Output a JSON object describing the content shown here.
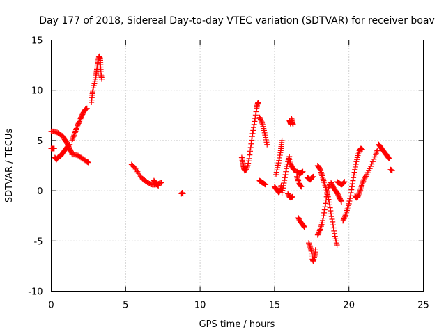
{
  "chart_data": {
    "type": "scatter",
    "title": "Day 177 of 2018, Sidereal Day-to-day VTEC variation (SDTVAR) for receiver boav",
    "xlabel": "GPS time / hours",
    "ylabel": "SDTVAR / TECUs",
    "xlim": [
      0,
      25
    ],
    "ylim": [
      -10,
      15
    ],
    "xticks": [
      "0",
      "5",
      "10",
      "15",
      "20",
      "25"
    ],
    "yticks": [
      "-10",
      "-5",
      "0",
      "5",
      "10",
      "15"
    ],
    "grid": true,
    "legend": "none",
    "marker": "+",
    "series": [
      {
        "name": "SDTVAR",
        "color": "#ff0000",
        "segments": [
          [
            [
              0.0,
              4.2
            ],
            [
              0.1,
              4.2
            ],
            [
              0.2,
              4.2
            ]
          ],
          [
            [
              0.0,
              5.9
            ],
            [
              0.2,
              5.9
            ],
            [
              0.4,
              5.8
            ],
            [
              0.6,
              5.6
            ],
            [
              0.8,
              5.4
            ],
            [
              0.9,
              5.1
            ],
            [
              1.0,
              4.9
            ],
            [
              1.1,
              4.6
            ],
            [
              1.2,
              4.3
            ],
            [
              1.3,
              4.0
            ],
            [
              1.4,
              3.7
            ]
          ],
          [
            [
              0.25,
              3.3
            ],
            [
              0.35,
              3.1
            ],
            [
              0.45,
              3.3
            ],
            [
              0.55,
              3.4
            ],
            [
              0.65,
              3.5
            ],
            [
              0.75,
              3.7
            ],
            [
              0.85,
              3.9
            ],
            [
              0.95,
              4.1
            ],
            [
              1.05,
              4.3
            ],
            [
              1.15,
              4.5
            ],
            [
              1.25,
              4.6
            ]
          ],
          [
            [
              1.4,
              5.0
            ],
            [
              1.5,
              5.4
            ],
            [
              1.6,
              5.8
            ],
            [
              1.7,
              6.2
            ],
            [
              1.8,
              6.6
            ],
            [
              1.9,
              6.9
            ],
            [
              2.0,
              7.3
            ],
            [
              2.1,
              7.6
            ],
            [
              2.2,
              7.9
            ],
            [
              2.3,
              8.1
            ],
            [
              2.4,
              8.2
            ]
          ],
          [
            [
              1.4,
              3.6
            ],
            [
              1.6,
              3.6
            ],
            [
              1.8,
              3.5
            ],
            [
              2.0,
              3.3
            ],
            [
              2.2,
              3.1
            ],
            [
              2.4,
              2.9
            ],
            [
              2.5,
              2.8
            ]
          ],
          [
            [
              2.7,
              8.8
            ],
            [
              2.75,
              9.5
            ],
            [
              2.8,
              10.0
            ],
            [
              2.9,
              10.7
            ],
            [
              3.0,
              11.3
            ],
            [
              3.05,
              11.9
            ],
            [
              3.1,
              12.5
            ],
            [
              3.15,
              12.9
            ],
            [
              3.2,
              13.3
            ],
            [
              3.25,
              13.4
            ],
            [
              3.3,
              13.0
            ],
            [
              3.32,
              12.3
            ],
            [
              3.35,
              11.6
            ],
            [
              3.4,
              11.1
            ]
          ],
          [
            [
              5.4,
              2.6
            ],
            [
              5.6,
              2.3
            ],
            [
              5.8,
              1.9
            ],
            [
              6.0,
              1.4
            ],
            [
              6.2,
              1.1
            ],
            [
              6.4,
              0.9
            ],
            [
              6.6,
              0.7
            ],
            [
              6.8,
              0.6
            ],
            [
              7.0,
              0.6
            ],
            [
              7.2,
              0.7
            ],
            [
              7.4,
              0.8
            ]
          ],
          [
            [
              6.9,
              1.0
            ],
            [
              7.0,
              0.8
            ],
            [
              7.1,
              0.6
            ],
            [
              7.2,
              0.5
            ]
          ],
          [
            [
              8.75,
              -0.3
            ],
            [
              8.8,
              -0.2
            ],
            [
              8.85,
              -0.3
            ]
          ],
          [
            [
              12.8,
              3.3
            ],
            [
              12.85,
              2.9
            ],
            [
              12.9,
              2.5
            ],
            [
              12.95,
              2.2
            ],
            [
              13.0,
              2.0
            ],
            [
              13.1,
              2.1
            ],
            [
              13.2,
              2.5
            ],
            [
              13.3,
              3.2
            ],
            [
              13.4,
              4.3
            ],
            [
              13.5,
              5.4
            ],
            [
              13.6,
              6.3
            ],
            [
              13.7,
              7.2
            ],
            [
              13.8,
              8.2
            ],
            [
              13.85,
              8.6
            ],
            [
              13.9,
              8.8
            ]
          ],
          [
            [
              14.0,
              7.3
            ],
            [
              14.1,
              7.0
            ],
            [
              14.2,
              6.6
            ],
            [
              14.3,
              6.0
            ],
            [
              14.4,
              5.3
            ],
            [
              14.5,
              4.6
            ]
          ],
          [
            [
              14.0,
              1.0
            ],
            [
              14.1,
              0.9
            ],
            [
              14.2,
              0.8
            ],
            [
              14.3,
              0.7
            ],
            [
              14.4,
              0.6
            ]
          ],
          [
            [
              15.0,
              0.4
            ],
            [
              15.1,
              0.2
            ],
            [
              15.2,
              0.0
            ],
            [
              15.3,
              -0.2
            ],
            [
              15.4,
              0.1
            ],
            [
              15.45,
              0.5
            ]
          ],
          [
            [
              15.1,
              1.6
            ],
            [
              15.2,
              2.3
            ],
            [
              15.3,
              3.0
            ],
            [
              15.4,
              3.8
            ],
            [
              15.45,
              4.4
            ],
            [
              15.5,
              5.0
            ]
          ],
          [
            [
              15.5,
              -0.2
            ],
            [
              15.6,
              0.5
            ],
            [
              15.7,
              1.3
            ],
            [
              15.8,
              2.2
            ],
            [
              15.9,
              2.9
            ],
            [
              16.0,
              3.4
            ]
          ],
          [
            [
              15.9,
              -0.3
            ],
            [
              16.0,
              -0.6
            ],
            [
              16.1,
              -0.7
            ],
            [
              16.2,
              -0.6
            ]
          ],
          [
            [
              16.0,
              7.0
            ],
            [
              16.05,
              6.8
            ],
            [
              16.1,
              6.6
            ],
            [
              16.15,
              7.2
            ],
            [
              16.2,
              6.8
            ],
            [
              16.25,
              6.6
            ]
          ],
          [
            [
              16.0,
              3.1
            ],
            [
              16.1,
              2.6
            ],
            [
              16.2,
              2.3
            ],
            [
              16.3,
              2.1
            ],
            [
              16.4,
              2.0
            ]
          ],
          [
            [
              16.5,
              1.9
            ],
            [
              16.6,
              1.8
            ],
            [
              16.7,
              1.7
            ],
            [
              16.8,
              1.8
            ],
            [
              16.9,
              1.9
            ]
          ],
          [
            [
              16.5,
              1.4
            ],
            [
              16.6,
              1.0
            ],
            [
              16.7,
              0.6
            ],
            [
              16.8,
              0.4
            ]
          ],
          [
            [
              16.6,
              -2.7
            ],
            [
              16.7,
              -3.0
            ],
            [
              16.8,
              -3.2
            ],
            [
              16.9,
              -3.4
            ],
            [
              17.0,
              -3.6
            ]
          ],
          [
            [
              17.2,
              1.3
            ],
            [
              17.3,
              1.2
            ],
            [
              17.4,
              1.1
            ],
            [
              17.5,
              1.3
            ],
            [
              17.6,
              1.4
            ]
          ],
          [
            [
              17.3,
              -5.2
            ],
            [
              17.4,
              -5.6
            ],
            [
              17.5,
              -6.2
            ],
            [
              17.55,
              -6.8
            ],
            [
              17.6,
              -7.0
            ],
            [
              17.7,
              -6.5
            ],
            [
              17.75,
              -5.9
            ]
          ],
          [
            [
              17.9,
              2.5
            ],
            [
              18.0,
              2.3
            ],
            [
              18.1,
              2.0
            ],
            [
              18.2,
              1.5
            ],
            [
              18.3,
              1.0
            ],
            [
              18.4,
              0.5
            ],
            [
              18.5,
              0.0
            ],
            [
              18.6,
              -0.6
            ],
            [
              18.7,
              -1.4
            ],
            [
              18.8,
              -2.3
            ],
            [
              18.9,
              -3.1
            ],
            [
              19.0,
              -4.0
            ],
            [
              19.1,
              -4.8
            ],
            [
              19.2,
              -5.4
            ]
          ],
          [
            [
              17.9,
              -4.4
            ],
            [
              18.0,
              -4.1
            ],
            [
              18.1,
              -3.7
            ],
            [
              18.2,
              -3.2
            ],
            [
              18.3,
              -2.5
            ],
            [
              18.4,
              -1.6
            ],
            [
              18.5,
              -0.6
            ],
            [
              18.6,
              0.2
            ],
            [
              18.7,
              0.6
            ]
          ],
          [
            [
              18.8,
              0.8
            ],
            [
              18.9,
              0.5
            ],
            [
              19.0,
              0.2
            ],
            [
              19.1,
              0.0
            ],
            [
              19.2,
              -0.2
            ],
            [
              19.3,
              -0.5
            ],
            [
              19.4,
              -0.8
            ],
            [
              19.5,
              -1.1
            ]
          ],
          [
            [
              19.2,
              0.9
            ],
            [
              19.3,
              0.8
            ],
            [
              19.4,
              0.7
            ],
            [
              19.5,
              0.6
            ],
            [
              19.6,
              0.7
            ],
            [
              19.7,
              0.9
            ]
          ],
          [
            [
              19.6,
              -3.0
            ],
            [
              19.7,
              -2.7
            ],
            [
              19.8,
              -2.3
            ],
            [
              19.9,
              -1.8
            ],
            [
              20.0,
              -1.3
            ],
            [
              20.1,
              -0.5
            ],
            [
              20.2,
              0.4
            ],
            [
              20.3,
              1.3
            ],
            [
              20.4,
              2.1
            ],
            [
              20.5,
              2.9
            ],
            [
              20.6,
              3.5
            ],
            [
              20.7,
              4.0
            ],
            [
              20.8,
              4.2
            ],
            [
              20.9,
              4.1
            ]
          ],
          [
            [
              20.4,
              -0.5
            ],
            [
              20.5,
              -0.7
            ],
            [
              20.6,
              -0.6
            ],
            [
              20.7,
              -0.2
            ],
            [
              20.8,
              0.2
            ],
            [
              20.9,
              0.7
            ],
            [
              21.0,
              1.1
            ],
            [
              21.2,
              1.6
            ],
            [
              21.4,
              2.2
            ],
            [
              21.6,
              2.9
            ],
            [
              21.8,
              3.6
            ],
            [
              21.9,
              4.0
            ]
          ],
          [
            [
              22.0,
              4.6
            ],
            [
              22.1,
              4.4
            ],
            [
              22.2,
              4.2
            ],
            [
              22.3,
              4.0
            ],
            [
              22.4,
              3.8
            ],
            [
              22.5,
              3.6
            ],
            [
              22.6,
              3.4
            ],
            [
              22.7,
              3.2
            ]
          ],
          [
            [
              22.8,
              2.1
            ],
            [
              22.9,
              2.0
            ]
          ]
        ]
      }
    ]
  }
}
